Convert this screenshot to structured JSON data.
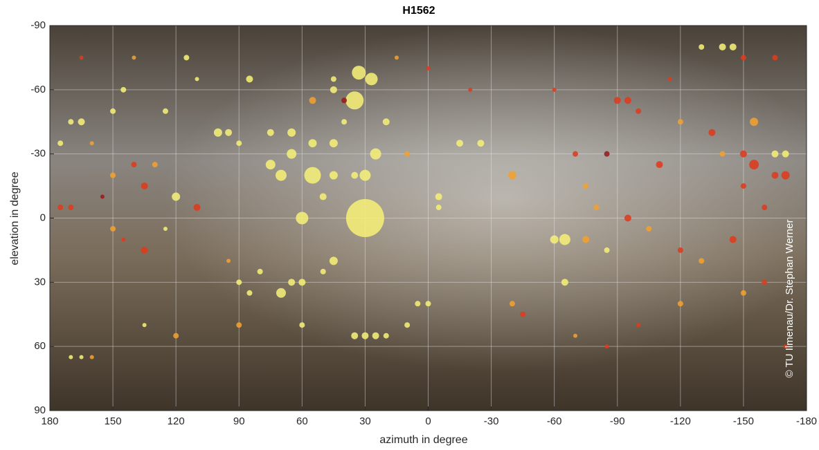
{
  "chart_data": {
    "type": "scatter",
    "title": "H1562",
    "xlabel": "azimuth in degree",
    "ylabel": "elevation in degree",
    "annotation": "© TU Ilmenau/Dr. Stephan Werner",
    "xlim": [
      180,
      -180
    ],
    "ylim": [
      -90,
      90
    ],
    "xticks": [
      180,
      150,
      120,
      90,
      60,
      30,
      0,
      -30,
      -60,
      -90,
      -120,
      -150,
      -180
    ],
    "yticks": [
      -90,
      -60,
      -30,
      0,
      30,
      60,
      90
    ],
    "grid": true,
    "x": [
      30,
      35,
      33,
      27,
      55,
      70,
      75,
      60,
      30,
      25,
      65,
      55,
      45,
      -40,
      -65,
      -60,
      70,
      65,
      -155,
      -170,
      -165,
      -155,
      -170,
      -165,
      -140,
      -145,
      -130,
      120,
      65,
      75,
      55,
      -15,
      -5,
      45,
      50,
      35,
      40,
      45,
      45,
      20,
      10,
      -25,
      -70,
      -90,
      -95,
      -100,
      -120,
      -135,
      -150,
      -160,
      -150,
      -140,
      -110,
      -85,
      -75,
      -80,
      -95,
      -105,
      -75,
      -85,
      -120,
      -130,
      -145,
      -150,
      -160,
      -120,
      -100,
      -85,
      -70,
      -40,
      -45,
      -65,
      0,
      5,
      10,
      25,
      30,
      35,
      20,
      60,
      85,
      120,
      135,
      170,
      165,
      160,
      90,
      135,
      130,
      140,
      150,
      160,
      165,
      170,
      150,
      125,
      115,
      110,
      100,
      95,
      90,
      85,
      145,
      175,
      175,
      170,
      155,
      145,
      135,
      110,
      150,
      125,
      95,
      80,
      90,
      60,
      45,
      50,
      40,
      -5,
      0,
      15,
      -20,
      -60,
      -115,
      -150,
      -165,
      165,
      140,
      -170
    ],
    "y": [
      0,
      -55,
      -68,
      -65,
      -20,
      -20,
      -25,
      0,
      -20,
      -30,
      -30,
      -35,
      -35,
      -20,
      10,
      10,
      35,
      30,
      -45,
      -20,
      -20,
      -25,
      -30,
      -30,
      -80,
      -80,
      -80,
      -10,
      -40,
      -40,
      -55,
      -35,
      -10,
      -20,
      -10,
      -20,
      -45,
      -60,
      -65,
      -45,
      -30,
      -35,
      -30,
      -55,
      -55,
      -50,
      -45,
      -40,
      -30,
      -5,
      -15,
      -30,
      -25,
      -30,
      -15,
      -5,
      0,
      5,
      10,
      15,
      15,
      20,
      10,
      35,
      30,
      40,
      50,
      60,
      55,
      40,
      45,
      30,
      40,
      40,
      50,
      55,
      55,
      55,
      55,
      50,
      35,
      55,
      50,
      65,
      65,
      65,
      50,
      -15,
      -25,
      -25,
      -20,
      -35,
      -45,
      -45,
      -50,
      -50,
      -75,
      -65,
      -40,
      -40,
      -35,
      -65,
      -60,
      -35,
      -5,
      -5,
      -10,
      10,
      15,
      -5,
      5,
      5,
      20,
      25,
      30,
      30,
      20,
      25,
      -55,
      -5,
      -70,
      -75,
      -60,
      -60,
      -65,
      -75,
      -75,
      -75,
      -75,
      60
    ],
    "sizes": [
      55,
      26,
      20,
      18,
      24,
      16,
      14,
      18,
      16,
      16,
      14,
      12,
      12,
      12,
      16,
      12,
      14,
      10,
      12,
      12,
      10,
      14,
      10,
      10,
      10,
      10,
      8,
      12,
      12,
      10,
      10,
      10,
      10,
      12,
      10,
      10,
      8,
      10,
      8,
      10,
      8,
      10,
      8,
      10,
      10,
      8,
      8,
      10,
      10,
      8,
      8,
      8,
      10,
      8,
      8,
      8,
      10,
      8,
      10,
      8,
      8,
      8,
      10,
      8,
      8,
      8,
      6,
      6,
      6,
      8,
      8,
      10,
      8,
      8,
      8,
      10,
      10,
      10,
      8,
      8,
      8,
      8,
      6,
      6,
      6,
      6,
      8,
      10,
      8,
      8,
      8,
      6,
      10,
      8,
      8,
      8,
      8,
      6,
      12,
      10,
      8,
      10,
      8,
      8,
      8,
      8,
      6,
      6,
      10,
      10,
      8,
      6,
      6,
      8,
      8,
      10,
      12,
      8,
      8,
      8,
      6,
      6,
      6,
      6,
      6,
      8,
      8,
      6,
      6,
      6
    ],
    "colors": [
      "#f4ee78",
      "#f4ee78",
      "#f4ee78",
      "#f4ee78",
      "#f4ee78",
      "#f4ee78",
      "#f4ee78",
      "#f4ee78",
      "#f4ee78",
      "#f4ee78",
      "#f4ee78",
      "#f4ee78",
      "#f4ee78",
      "#f0a030",
      "#f4ee78",
      "#f4ee78",
      "#f4ee78",
      "#f4ee78",
      "#f0a030",
      "#dd3b1e",
      "#dd3b1e",
      "#dd3b1e",
      "#f4ee78",
      "#f4ee78",
      "#f4ee78",
      "#f4ee78",
      "#f4ee78",
      "#f4ee78",
      "#f4ee78",
      "#f4ee78",
      "#f0a030",
      "#f4ee78",
      "#f4ee78",
      "#f4ee78",
      "#f4ee78",
      "#f4ee78",
      "#f4ee78",
      "#f4ee78",
      "#f4ee78",
      "#f4ee78",
      "#f0a030",
      "#f4ee78",
      "#dd3b1e",
      "#dd3b1e",
      "#dd3b1e",
      "#dd3b1e",
      "#f0a030",
      "#dd3b1e",
      "#dd3b1e",
      "#dd3b1e",
      "#dd3b1e",
      "#f0a030",
      "#dd3b1e",
      "#9b1a1a",
      "#f0a030",
      "#f0a030",
      "#dd3b1e",
      "#f0a030",
      "#f0a030",
      "#f4ee78",
      "#dd3b1e",
      "#f0a030",
      "#dd3b1e",
      "#f0a030",
      "#dd3b1e",
      "#f0a030",
      "#dd3b1e",
      "#dd3b1e",
      "#f0a030",
      "#f0a030",
      "#dd3b1e",
      "#f4ee78",
      "#f4ee78",
      "#f4ee78",
      "#f4ee78",
      "#f4ee78",
      "#f4ee78",
      "#f4ee78",
      "#f4ee78",
      "#f4ee78",
      "#f4ee78",
      "#f0a030",
      "#f4ee78",
      "#f4ee78",
      "#f4ee78",
      "#f0a030",
      "#f0a030",
      "#dd3b1e",
      "#f0a030",
      "#dd3b1e",
      "#f0a030",
      "#f0a030",
      "#f4ee78",
      "#f4ee78",
      "#f4ee78",
      "#f4ee78",
      "#f4ee78",
      "#f4ee78",
      "#f4ee78",
      "#f4ee78",
      "#f4ee78",
      "#f4ee78",
      "#f4ee78",
      "#f4ee78",
      "#dd3b1e",
      "#dd3b1e",
      "#9b1a1a",
      "#dd3b1e",
      "#dd3b1e",
      "#dd3b1e",
      "#f0a030",
      "#f4ee78",
      "#f0a030",
      "#f4ee78",
      "#f4ee78",
      "#f4ee78",
      "#f4ee78",
      "#f4ee78",
      "#9b1a1a",
      "#f4ee78",
      "#dd3b1e",
      "#f0a030",
      "#dd3b1e",
      "#dd3b1e",
      "#dd3b1e",
      "#dd3b1e",
      "#dd3b1e",
      "#dd3b1e",
      "#f0a030",
      "#dd3b1e"
    ]
  }
}
